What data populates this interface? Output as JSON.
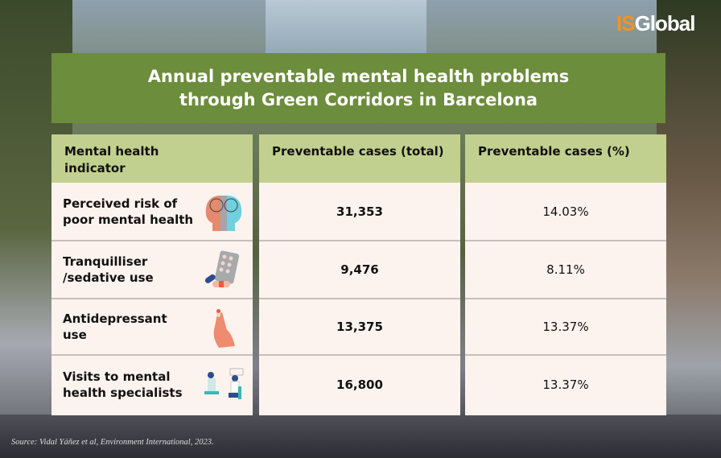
{
  "logo": {
    "part1": "IS",
    "part2": "Global"
  },
  "title": {
    "line1": "Annual preventable mental health problems",
    "line2": "through Green Corridors in Barcelona"
  },
  "headers": {
    "indicator": "Mental health indicator",
    "total": "Preventable cases (total)",
    "percent": "Preventable cases (%)"
  },
  "rows": [
    {
      "indicator": "Perceived risk of poor mental health",
      "total": "31,353",
      "percent": "14.03%",
      "icon": "heads-brain-icon"
    },
    {
      "indicator": "Tranquilliser /sedative use",
      "total": "9,476",
      "percent": "8.11%",
      "icon": "pills-icon"
    },
    {
      "indicator": "Antidepressant use",
      "total": "13,375",
      "percent": "13.37%",
      "icon": "hand-pill-icon"
    },
    {
      "indicator": "Visits to mental health specialists",
      "total": "16,800",
      "percent": "13.37%",
      "icon": "therapy-session-icon"
    }
  ],
  "colors": {
    "banner": "#6c8d3b",
    "header": "#c2d08f",
    "cell": "#fdf3ee",
    "logo_accent": "#f39220"
  },
  "source": "Source: Vidal Yáñez et al, Environment International, 2023."
}
